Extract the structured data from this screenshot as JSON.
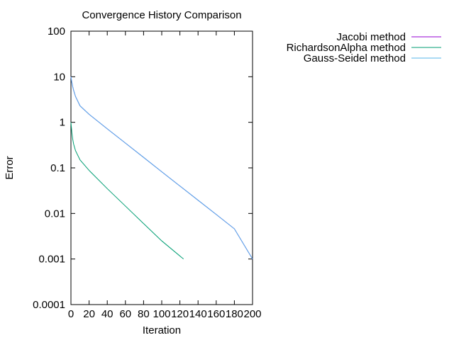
{
  "chart_data": {
    "type": "line",
    "title": "Convergence History Comparison",
    "xlabel": "Iteration",
    "ylabel": "Error",
    "xlim": [
      0,
      200
    ],
    "ylim": [
      0.0001,
      100
    ],
    "y_scale": "log",
    "grid": false,
    "legend_position": "top-right, outside plot",
    "x_ticks": [
      "0",
      "20",
      "40",
      "60",
      "80",
      "100",
      "120",
      "140",
      "160",
      "180",
      "200"
    ],
    "y_ticks": [
      "0.0001",
      "0.001",
      "0.01",
      "0.1",
      "1",
      "10",
      "100"
    ],
    "series": [
      {
        "name": "Jacobi method",
        "color": "#9400d3",
        "x": [
          0,
          1,
          2,
          3,
          5,
          10,
          20,
          40,
          60,
          80,
          100,
          120,
          140,
          160,
          180,
          200
        ],
        "y": [
          10,
          7.5,
          6,
          5,
          3.7,
          2.3,
          1.5,
          0.72,
          0.35,
          0.17,
          0.082,
          0.04,
          0.0195,
          0.0095,
          0.0046,
          0.001
        ]
      },
      {
        "name": "RichardsonAlpha method",
        "color": "#009e73",
        "x": [
          0,
          1,
          2,
          3,
          5,
          10,
          20,
          40,
          60,
          80,
          100,
          124
        ],
        "y": [
          1,
          0.6,
          0.42,
          0.33,
          0.24,
          0.15,
          0.088,
          0.035,
          0.0145,
          0.006,
          0.0025,
          0.001
        ]
      },
      {
        "name": "Gauss-Seidel method",
        "color": "#56b4e9",
        "x": [
          0,
          1,
          2,
          3,
          5,
          10,
          20,
          40,
          60,
          80,
          100,
          120,
          140,
          160,
          180,
          200
        ],
        "y": [
          10,
          7.5,
          6,
          5,
          3.7,
          2.3,
          1.5,
          0.72,
          0.35,
          0.17,
          0.082,
          0.04,
          0.0195,
          0.0095,
          0.0046,
          0.001
        ]
      }
    ]
  }
}
